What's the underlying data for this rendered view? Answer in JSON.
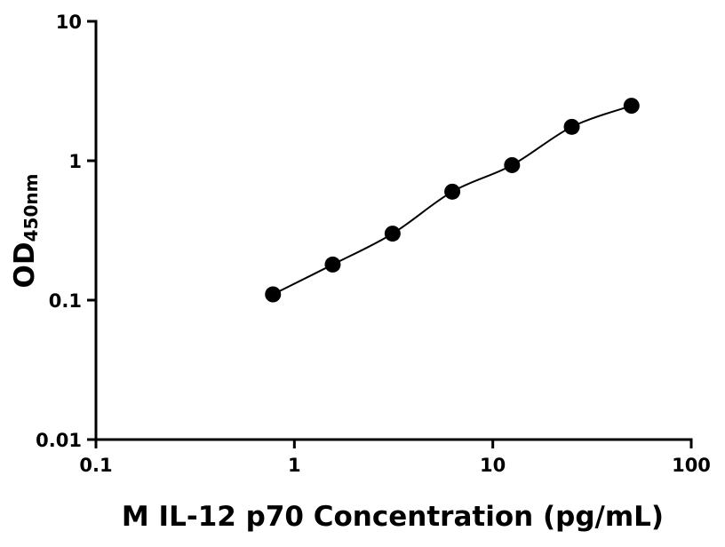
{
  "chart_data": {
    "type": "scatter",
    "x_label": "M IL-12 p70 Concentration (pg/mL)",
    "y_label": "OD",
    "y_label_subscript": "450nm",
    "x": [
      0.78,
      1.56,
      3.125,
      6.25,
      12.5,
      25,
      50
    ],
    "series": [
      {
        "color": "#000000",
        "values": [
          0.11,
          0.18,
          0.3,
          0.6,
          0.93,
          1.75,
          2.48
        ]
      }
    ],
    "xlim": [
      0.1,
      100
    ],
    "xticks": [
      0.1,
      1,
      10,
      100
    ],
    "ylim": [
      0.01,
      10
    ],
    "yticks": [
      0.01,
      0.1,
      1,
      10
    ],
    "xscale": "log",
    "yscale": "log",
    "fit_curve": true
  }
}
